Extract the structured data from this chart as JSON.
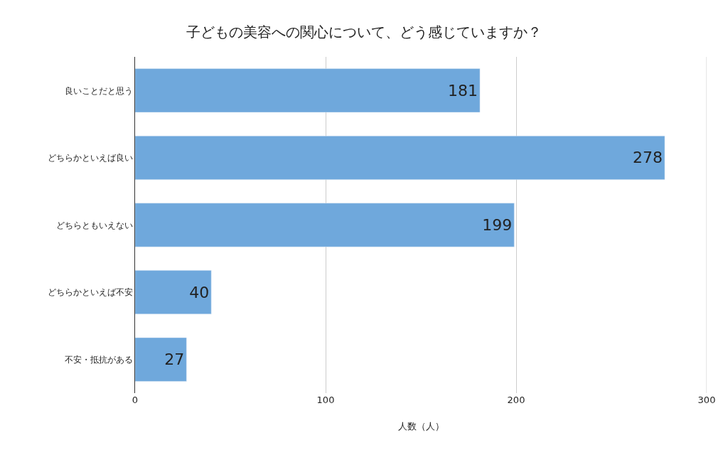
{
  "chart_data": {
    "type": "bar",
    "orientation": "horizontal",
    "title": "子どもの美容への関心について、どう感じていますか？",
    "xlabel": "人数（人）",
    "categories": [
      "良いことだと思う",
      "どちらかといえば良い",
      "どちらともいえない",
      "どちらかといえば不安",
      "不安・抵抗がある"
    ],
    "values": [
      181,
      278,
      199,
      40,
      27
    ],
    "color": "#6fa8dc",
    "xlim": [
      0,
      300
    ],
    "xticks": [
      0,
      100,
      200,
      300
    ],
    "grid": "x",
    "data_labels": true
  }
}
